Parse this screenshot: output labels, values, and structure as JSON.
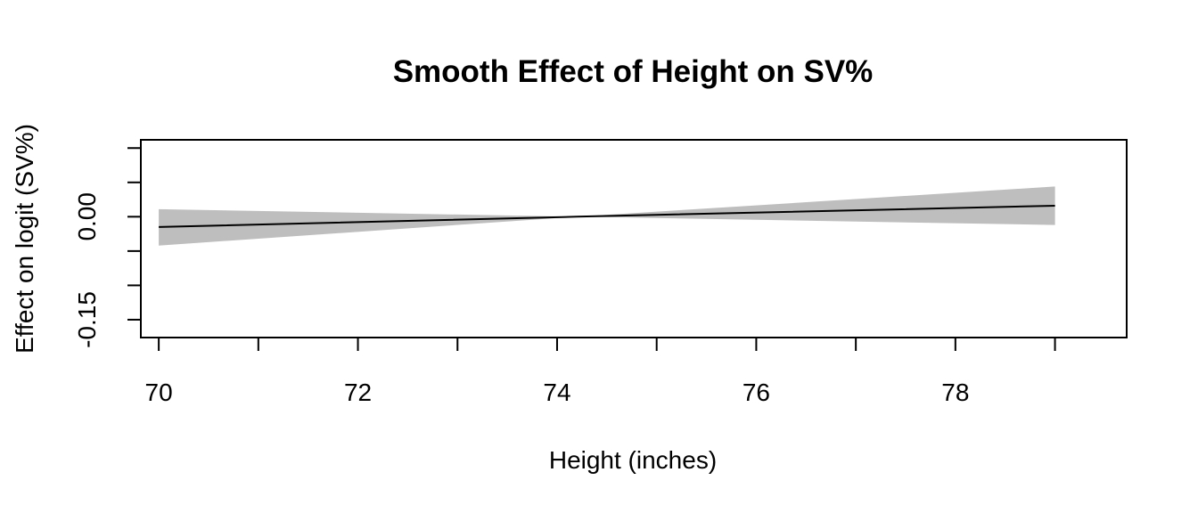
{
  "chart_data": {
    "type": "line",
    "title": "Smooth Effect of Height on SV%",
    "xlabel": "Height (inches)",
    "ylabel": "Effect on logit (SV%)",
    "xlim": [
      69.82,
      79.72
    ],
    "ylim": [
      -0.176,
      0.112
    ],
    "x_ticks": [
      70,
      71,
      72,
      73,
      74,
      75,
      76,
      77,
      78,
      79
    ],
    "x_tick_labels": [
      "70",
      "72",
      "74",
      "76",
      "78"
    ],
    "y_ticks": [
      -0.15,
      -0.1,
      -0.05,
      0.0,
      0.05,
      0.1
    ],
    "y_tick_labels": [
      "-0.15",
      "0.00"
    ],
    "series": [
      {
        "type": "ribbon",
        "color": "#bebebe",
        "x": [
          70,
          74.2,
          79
        ],
        "lower": [
          -0.042,
          0.0,
          -0.012
        ],
        "upper": [
          0.011,
          0.0,
          0.044
        ]
      },
      {
        "type": "line",
        "color": "#000000",
        "x": [
          70,
          74.2,
          79
        ],
        "y": [
          -0.015,
          0.0,
          0.016
        ]
      }
    ],
    "grid": false,
    "legend": "none"
  }
}
